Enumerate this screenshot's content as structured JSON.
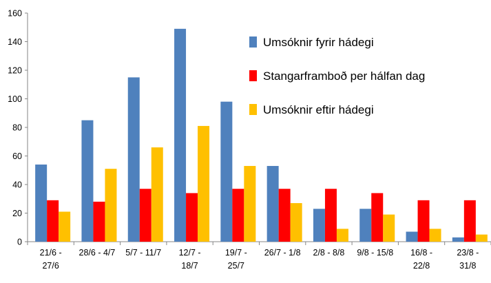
{
  "chart_data": {
    "type": "bar",
    "categories": [
      [
        "21/6 -",
        "27/6"
      ],
      [
        "28/6 - 4/7",
        ""
      ],
      [
        "5/7 - 11/7",
        ""
      ],
      [
        "12/7 -",
        "18/7"
      ],
      [
        "19/7 -",
        "25/7"
      ],
      [
        "26/7 - 1/8",
        ""
      ],
      [
        "2/8 - 8/8",
        ""
      ],
      [
        "9/8 - 15/8",
        ""
      ],
      [
        "16/8 -",
        "22/8"
      ],
      [
        "23/8 -",
        "31/8"
      ]
    ],
    "series": [
      {
        "name": "Umsóknir fyrir hádegi",
        "color": "#4F81BD",
        "values": [
          54,
          85,
          115,
          149,
          98,
          53,
          23,
          23,
          7,
          3
        ]
      },
      {
        "name": "Stangarframboð per hálfan dag",
        "color": "#FF0000",
        "values": [
          29,
          28,
          37,
          34,
          37,
          37,
          37,
          34,
          29,
          29
        ]
      },
      {
        "name": "Umsóknir eftir hádegi",
        "color": "#FFC000",
        "values": [
          21,
          51,
          66,
          81,
          53,
          27,
          9,
          19,
          9,
          5
        ]
      }
    ],
    "yticks": [
      "0",
      "20",
      "40",
      "60",
      "80",
      "100",
      "120",
      "140",
      "160"
    ],
    "ylim": [
      0,
      160
    ],
    "grid": false,
    "legend_position": "top-right",
    "title": "",
    "xlabel": "",
    "ylabel": ""
  }
}
